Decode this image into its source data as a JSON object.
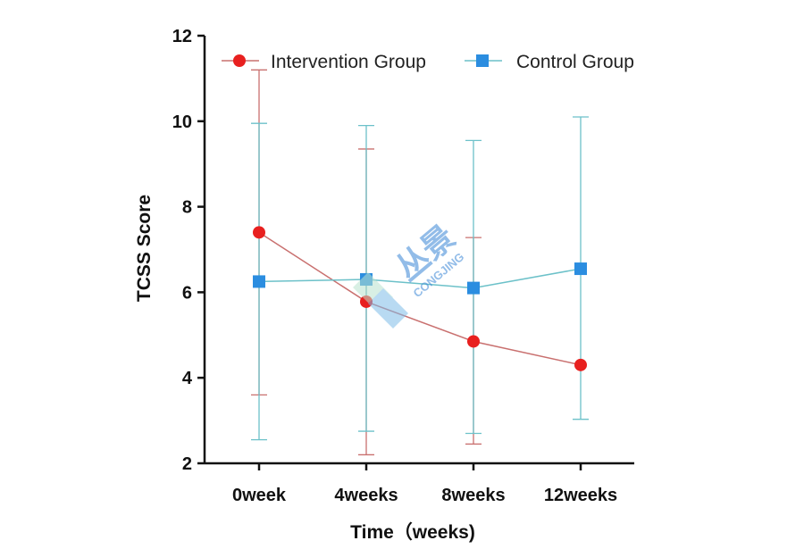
{
  "chart_data": {
    "type": "line",
    "title": "",
    "xlabel": "Time（weeks)",
    "ylabel": "TCSS Score",
    "categories": [
      "0week",
      "4weeks",
      "8weeks",
      "12weeks"
    ],
    "ylim": [
      2,
      12
    ],
    "yticks": [
      2,
      4,
      6,
      8,
      10,
      12
    ],
    "legend_position": "top",
    "series": [
      {
        "name": "Intervention Group",
        "color": "#e8201f",
        "line_color": "#c9706f",
        "marker": "circle",
        "values": [
          7.4,
          5.78,
          4.85,
          4.3
        ],
        "error_low": [
          3.6,
          2.2,
          2.45,
          4.3
        ],
        "error_high": [
          11.2,
          9.35,
          7.28,
          4.3
        ]
      },
      {
        "name": "Control Group",
        "color": "#2b8de0",
        "line_color": "#6cc1c9",
        "marker": "square",
        "values": [
          6.25,
          6.3,
          6.1,
          6.55
        ],
        "error_low": [
          2.55,
          2.75,
          2.7,
          3.03
        ],
        "error_high": [
          9.95,
          9.9,
          9.55,
          10.1
        ]
      }
    ]
  },
  "watermark": {
    "text_cn": "丛景",
    "text_en": "CONGJING",
    "color": "#3a86d6"
  }
}
